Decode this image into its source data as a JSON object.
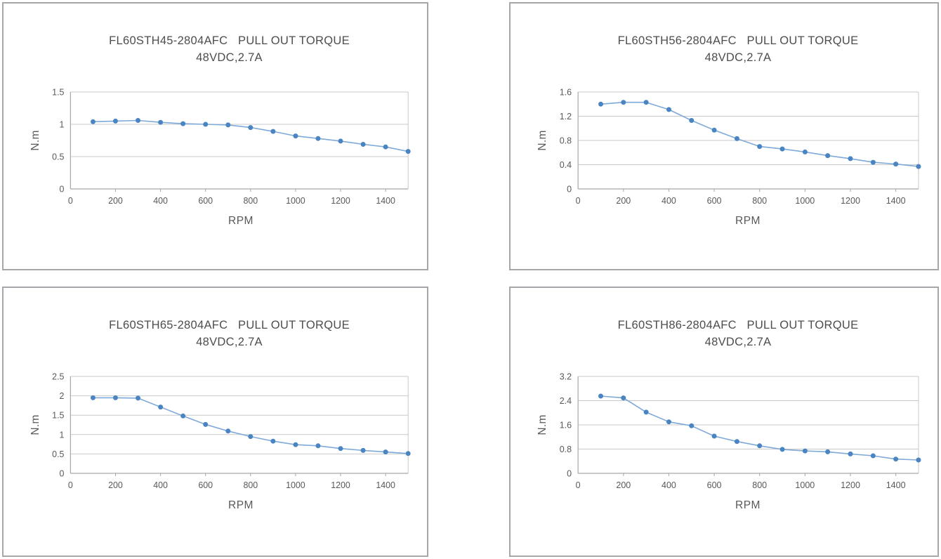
{
  "page": {
    "background": "#ffffff",
    "panel_border": "#a7a7ab"
  },
  "colors": {
    "line": "#7ea9d8",
    "marker": "#4a85c2",
    "grid": "#c9c9c9",
    "axis": "#a6a6a6",
    "tick_text": "#595959",
    "title_text": "#4d4d4d"
  },
  "chart_data": [
    {
      "type": "line",
      "title": "FL60STH45-2804AFC   PULL OUT TORQUE",
      "subtitle": "48VDC,2.7A",
      "xlabel": "RPM",
      "ylabel": "N.m",
      "x": [
        100,
        200,
        300,
        400,
        500,
        600,
        700,
        800,
        900,
        1000,
        1100,
        1200,
        1300,
        1400,
        1500
      ],
      "values": [
        1.04,
        1.05,
        1.06,
        1.03,
        1.01,
        1.0,
        0.99,
        0.95,
        0.89,
        0.82,
        0.78,
        0.74,
        0.69,
        0.65,
        0.58
      ],
      "xlim": [
        0,
        1500
      ],
      "ylim": [
        0,
        1.5
      ],
      "xticks": [
        0,
        200,
        400,
        600,
        800,
        1000,
        1200,
        1400
      ],
      "yticks": [
        0,
        0.5,
        1,
        1.5
      ],
      "ytick_labels": [
        "0",
        "0.5",
        "1",
        "1.5"
      ],
      "grid": true,
      "legend": false,
      "marker": "circle"
    },
    {
      "type": "line",
      "title": "FL60STH56-2804AFC   PULL OUT TORQUE",
      "subtitle": "48VDC,2.7A",
      "xlabel": "RPM",
      "ylabel": "N.m",
      "x": [
        100,
        200,
        300,
        400,
        500,
        600,
        700,
        800,
        900,
        1000,
        1100,
        1200,
        1300,
        1400,
        1500
      ],
      "values": [
        1.4,
        1.43,
        1.43,
        1.31,
        1.13,
        0.97,
        0.83,
        0.7,
        0.66,
        0.61,
        0.55,
        0.5,
        0.44,
        0.41,
        0.37
      ],
      "xlim": [
        0,
        1500
      ],
      "ylim": [
        0,
        1.6
      ],
      "xticks": [
        0,
        200,
        400,
        600,
        800,
        1000,
        1200,
        1400
      ],
      "yticks": [
        0,
        0.4,
        0.8,
        1.2,
        1.6
      ],
      "ytick_labels": [
        "0",
        "0.4",
        "0.8",
        "1.2",
        "1.6"
      ],
      "grid": true,
      "legend": false,
      "marker": "circle"
    },
    {
      "type": "line",
      "title": "FL60STH65-2804AFC   PULL OUT TORQUE",
      "subtitle": "48VDC,2.7A",
      "xlabel": "RPM",
      "ylabel": "N.m",
      "x": [
        100,
        200,
        300,
        400,
        500,
        600,
        700,
        800,
        900,
        1000,
        1100,
        1200,
        1300,
        1400,
        1500
      ],
      "values": [
        1.95,
        1.95,
        1.94,
        1.71,
        1.48,
        1.26,
        1.09,
        0.95,
        0.83,
        0.74,
        0.71,
        0.64,
        0.59,
        0.55,
        0.51
      ],
      "xlim": [
        0,
        1500
      ],
      "ylim": [
        0,
        2.5
      ],
      "xticks": [
        0,
        200,
        400,
        600,
        800,
        1000,
        1200,
        1400
      ],
      "yticks": [
        0,
        0.5,
        1,
        1.5,
        2,
        2.5
      ],
      "ytick_labels": [
        "0",
        "0.5",
        "1",
        "1.5",
        "2",
        "2.5"
      ],
      "grid": true,
      "legend": false,
      "marker": "circle"
    },
    {
      "type": "line",
      "title": "FL60STH86-2804AFC   PULL OUT TORQUE",
      "subtitle": "48VDC,2.7A",
      "xlabel": "RPM",
      "ylabel": "N.m",
      "x": [
        100,
        200,
        300,
        400,
        500,
        600,
        700,
        800,
        900,
        1000,
        1100,
        1200,
        1300,
        1400,
        1500
      ],
      "values": [
        2.55,
        2.49,
        2.02,
        1.7,
        1.57,
        1.23,
        1.05,
        0.91,
        0.79,
        0.74,
        0.71,
        0.64,
        0.58,
        0.47,
        0.44
      ],
      "xlim": [
        0,
        1500
      ],
      "ylim": [
        0,
        3.2
      ],
      "xticks": [
        0,
        200,
        400,
        600,
        800,
        1000,
        1200,
        1400
      ],
      "yticks": [
        0,
        0.8,
        1.6,
        2.4,
        3.2
      ],
      "ytick_labels": [
        "0",
        "0.8",
        "1.6",
        "2.4",
        "3.2"
      ],
      "grid": true,
      "legend": false,
      "marker": "circle"
    }
  ]
}
